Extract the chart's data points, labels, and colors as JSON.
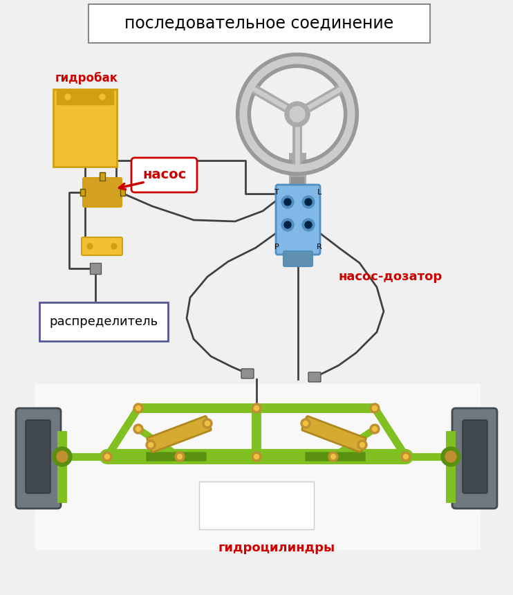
{
  "title": "последовательное соединение",
  "title_fontsize": 17,
  "bg_color": "#f0f0f0",
  "label_nasos": "насос",
  "label_gidobak": "гидробак",
  "label_nasos_dozator": "насос-дозатор",
  "label_raspredelitel": "распределитель",
  "label_gidrotsilindry": "гидроцилиндры",
  "label_color_red": "#cc0000",
  "label_T": "T",
  "label_L": "L",
  "label_P": "P",
  "label_R": "R",
  "steering_color": "#aaaaaa",
  "steering_inner": "#c8c8c8",
  "tank_color": "#f0c030",
  "tank_dark": "#d0a010",
  "pump_color": "#d4a020",
  "valve_color": "#80b8e8",
  "valve_dark": "#5090c0",
  "frame_color": "#80c020",
  "frame_dark": "#5a9010",
  "cylinder_color": "#d4aa30",
  "cylinder_dark": "#b08820",
  "wheel_color": "#707880",
  "wheel_dark": "#404850",
  "line_color": "#404040",
  "joint_color": "#c09030",
  "connector_color": "#909090"
}
